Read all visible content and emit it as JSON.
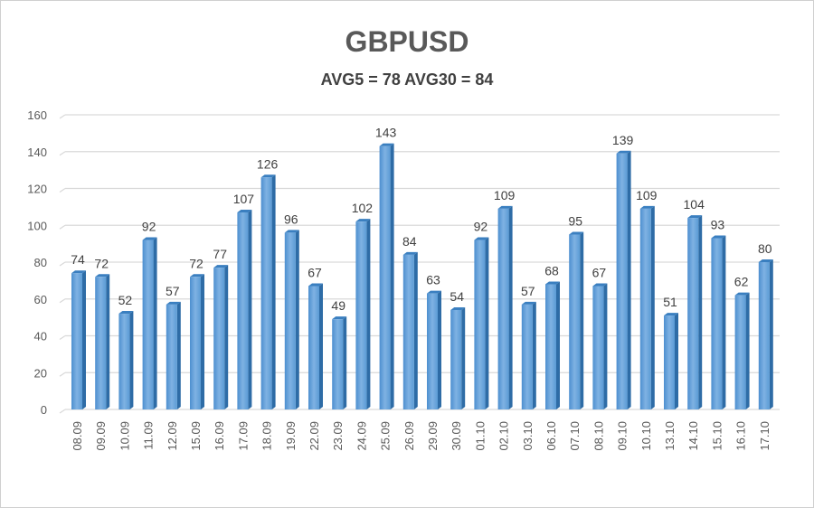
{
  "chart_data": {
    "type": "bar",
    "title": "GBPUSD",
    "subtitle": "AVG5 = 78 AVG30 = 84",
    "xlabel": "",
    "ylabel": "",
    "ylim": [
      0,
      160
    ],
    "yticks": [
      0,
      20,
      40,
      60,
      80,
      100,
      120,
      140,
      160
    ],
    "grid": true,
    "legend": "none",
    "bar_color": "#5b9bd5",
    "categories": [
      "08.09",
      "09.09",
      "10.09",
      "11.09",
      "12.09",
      "15.09",
      "16.09",
      "17.09",
      "18.09",
      "19.09",
      "22.09",
      "23.09",
      "24.09",
      "25.09",
      "26.09",
      "29.09",
      "30.09",
      "01.10",
      "02.10",
      "03.10",
      "06.10",
      "07.10",
      "08.10",
      "09.10",
      "10.10",
      "13.10",
      "14.10",
      "15.10",
      "16.10",
      "17.10"
    ],
    "values": [
      74,
      72,
      52,
      92,
      57,
      72,
      77,
      107,
      126,
      96,
      67,
      49,
      102,
      143,
      84,
      63,
      54,
      92,
      109,
      57,
      68,
      95,
      67,
      139,
      109,
      51,
      104,
      93,
      62,
      80
    ]
  }
}
